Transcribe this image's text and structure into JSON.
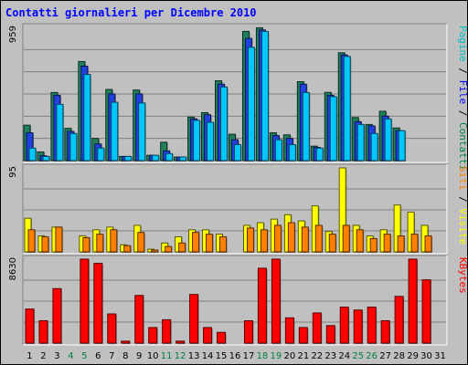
{
  "chart_data": {
    "type": "bar",
    "title": "Contatti giornalieri per Dicembre 2010",
    "categories": [
      "1",
      "2",
      "3",
      "4",
      "5",
      "6",
      "7",
      "8",
      "9",
      "10",
      "11",
      "12",
      "13",
      "14",
      "15",
      "16",
      "17",
      "18",
      "19",
      "20",
      "21",
      "22",
      "23",
      "24",
      "25",
      "26",
      "27",
      "28",
      "29",
      "30",
      "31"
    ],
    "weekend_days": [
      "4",
      "5",
      "11",
      "12",
      "18",
      "19",
      "25",
      "26"
    ],
    "panels": [
      {
        "id": "top",
        "ymax_label": "959",
        "ymax": 959,
        "legend": [
          {
            "text": "Pagine",
            "color": "#00c0c0"
          },
          {
            "text": " / ",
            "color": "#000000"
          },
          {
            "text": "File",
            "color": "#0000ff"
          },
          {
            "text": " / ",
            "color": "#000000"
          },
          {
            "text": "Contatti",
            "color": "#008040"
          }
        ],
        "series": [
          {
            "name": "Contatti",
            "color": "#1f7f5a",
            "values": [
              255,
              62,
              490,
              232,
              713,
              160,
              512,
              30,
              508,
              38,
              132,
              26,
              313,
              345,
              575,
              190,
              930,
              956,
              200,
              185,
              568,
              104,
              491,
              776,
              310,
              260,
              355,
              235,
              0,
              0,
              0
            ]
          },
          {
            "name": "File",
            "color": "#2040e0",
            "values": [
              200,
              35,
              470,
              210,
              680,
              120,
              480,
              30,
              480,
              38,
              70,
              26,
              300,
              330,
              550,
              150,
              880,
              940,
              180,
              160,
              550,
              95,
              470,
              760,
              280,
              250,
              320,
              215,
              0,
              0,
              0
            ]
          },
          {
            "name": "Pagine",
            "color": "#00c8ff",
            "values": [
              90,
              30,
              405,
              195,
              620,
              90,
              420,
              30,
              415,
              38,
              50,
              26,
              290,
              275,
              530,
              115,
              815,
              930,
              150,
              115,
              490,
              90,
              460,
              750,
              260,
              195,
              300,
              215,
              0,
              0,
              0
            ]
          }
        ]
      },
      {
        "id": "mid",
        "ymax_label": "95",
        "ymax": 95,
        "legend": [
          {
            "text": "Siti",
            "color": "#ff8000"
          },
          {
            "text": " / ",
            "color": "#000000"
          },
          {
            "text": "Visite",
            "color": "#ffff00"
          }
        ],
        "series": [
          {
            "name": "Visite",
            "color": "#ffff00",
            "values": [
              38,
              18,
              28,
              0,
              18,
              25,
              28,
              8,
              30,
              3,
              10,
              17,
              25,
              25,
              20,
              0,
              30,
              33,
              37,
              42,
              35,
              52,
              23,
              95,
              30,
              18,
              25,
              53,
              45,
              30,
              0
            ]
          },
          {
            "name": "Siti",
            "color": "#ff8000",
            "values": [
              25,
              17,
              28,
              0,
              16,
              20,
              25,
              7,
              22,
              2,
              6,
              10,
              22,
              20,
              17,
              0,
              27,
              25,
              30,
              33,
              28,
              30,
              20,
              30,
              25,
              15,
              20,
              18,
              20,
              18,
              0
            ]
          }
        ]
      },
      {
        "id": "bot",
        "ymax_label": "8630",
        "ymax": 8630,
        "legend": [
          {
            "text": "KBytes",
            "color": "#ff0000"
          }
        ],
        "series": [
          {
            "name": "KBytes",
            "color": "#ff0000",
            "values": [
              3500,
              2300,
              5600,
              0,
              8630,
              8200,
              3000,
              200,
              4900,
              1600,
              2400,
              200,
              5000,
              1600,
              1100,
              0,
              2300,
              7700,
              8630,
              2600,
              1600,
              3100,
              1800,
              3700,
              3400,
              3700,
              2300,
              4800,
              8630,
              6500,
              0
            ]
          }
        ]
      }
    ]
  }
}
